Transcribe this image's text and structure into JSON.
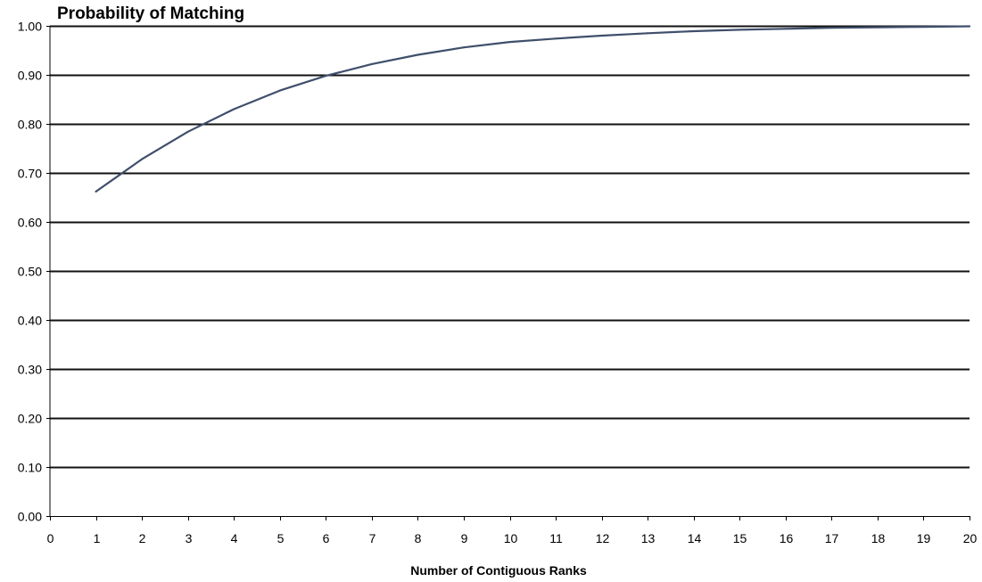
{
  "chart_data": {
    "type": "line",
    "title": "Probability of Matching",
    "xlabel": "Number of Contiguous Ranks",
    "ylabel": "",
    "xlim": [
      0,
      20
    ],
    "ylim": [
      0,
      1
    ],
    "grid": true,
    "x_ticks": [
      "0",
      "1",
      "2",
      "3",
      "4",
      "5",
      "6",
      "7",
      "8",
      "9",
      "10",
      "11",
      "12",
      "13",
      "14",
      "15",
      "16",
      "17",
      "18",
      "19",
      "20"
    ],
    "y_ticks": [
      "0.00",
      "0.10",
      "0.20",
      "0.30",
      "0.40",
      "0.50",
      "0.60",
      "0.70",
      "0.80",
      "0.90",
      "1.00"
    ],
    "x": [
      1,
      2,
      3,
      4,
      5,
      6,
      7,
      8,
      9,
      10,
      11,
      12,
      13,
      14,
      15,
      16,
      17,
      18,
      19,
      20
    ],
    "series": [
      {
        "values": [
          0.662,
          0.728,
          0.784,
          0.83,
          0.868,
          0.898,
          0.922,
          0.941,
          0.956,
          0.967,
          0.974,
          0.98,
          0.985,
          0.989,
          0.992,
          0.994,
          0.996,
          0.997,
          0.998,
          0.999
        ],
        "color": "#3f4f6b"
      }
    ]
  }
}
